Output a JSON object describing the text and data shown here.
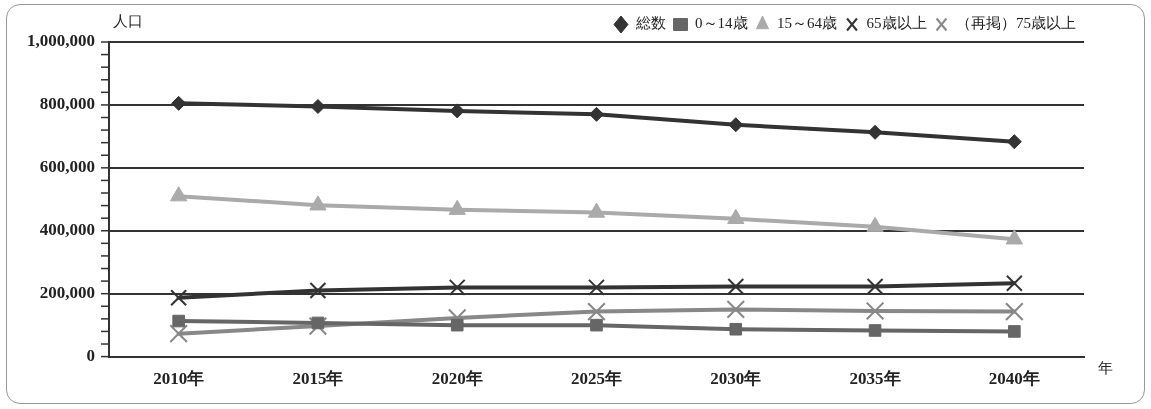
{
  "chart_data": {
    "type": "line",
    "xlabel": "年",
    "ylabel": "人口",
    "categories": [
      "2010年",
      "2015年",
      "2020年",
      "2025年",
      "2030年",
      "2035年",
      "2040年"
    ],
    "series": [
      {
        "name": "総数",
        "color": "#333333",
        "marker": "diamond",
        "values": [
          805000,
          795000,
          781000,
          770000,
          737000,
          713000,
          683000
        ]
      },
      {
        "name": "0～14歳",
        "color": "#666666",
        "marker": "square",
        "values": [
          113000,
          107000,
          100000,
          100000,
          87000,
          83000,
          80000
        ]
      },
      {
        "name": "15～64歳",
        "color": "#aaaaaa",
        "marker": "triangle",
        "values": [
          510000,
          481000,
          467000,
          458000,
          438000,
          413000,
          373000
        ]
      },
      {
        "name": "65歳以上",
        "color": "#333333",
        "marker": "cross",
        "values": [
          187000,
          210000,
          220000,
          220000,
          223000,
          223000,
          233000
        ]
      },
      {
        "name": "（再掲）75歳以上",
        "color": "#888888",
        "marker": "cross",
        "values": [
          73000,
          97000,
          123000,
          143000,
          150000,
          145000,
          143000
        ]
      }
    ],
    "ylim": [
      0,
      1000000
    ],
    "yticks": [
      0,
      {
        "value": 40000,
        "label": null
      },
      {
        "value": 80000,
        "label": null
      },
      {
        "value": 120000,
        "label": null
      },
      {
        "value": 160000,
        "label": null
      },
      {
        "value": 200000,
        "label": "200,000"
      },
      {
        "value": 240000,
        "label": null
      },
      {
        "value": 280000,
        "label": null
      },
      {
        "value": 320000,
        "label": null
      },
      {
        "value": 360000,
        "label": null
      },
      {
        "value": 400000,
        "label": "400,000"
      },
      {
        "value": 440000,
        "label": null
      },
      {
        "value": 480000,
        "label": null
      },
      {
        "value": 520000,
        "label": null
      },
      {
        "value": 560000,
        "label": null
      },
      {
        "value": 600000,
        "label": "600,000"
      },
      {
        "value": 640000,
        "label": null
      },
      {
        "value": 680000,
        "label": null
      },
      {
        "value": 720000,
        "label": null
      },
      {
        "value": 760000,
        "label": null
      },
      {
        "value": 800000,
        "label": "800,000"
      },
      {
        "value": 840000,
        "label": null
      },
      {
        "value": 880000,
        "label": null
      },
      {
        "value": 920000,
        "label": null
      },
      {
        "value": 960000,
        "label": null
      },
      {
        "value": 1000000,
        "label": "1,000,000"
      }
    ],
    "grid": "y",
    "legend": "top right"
  }
}
